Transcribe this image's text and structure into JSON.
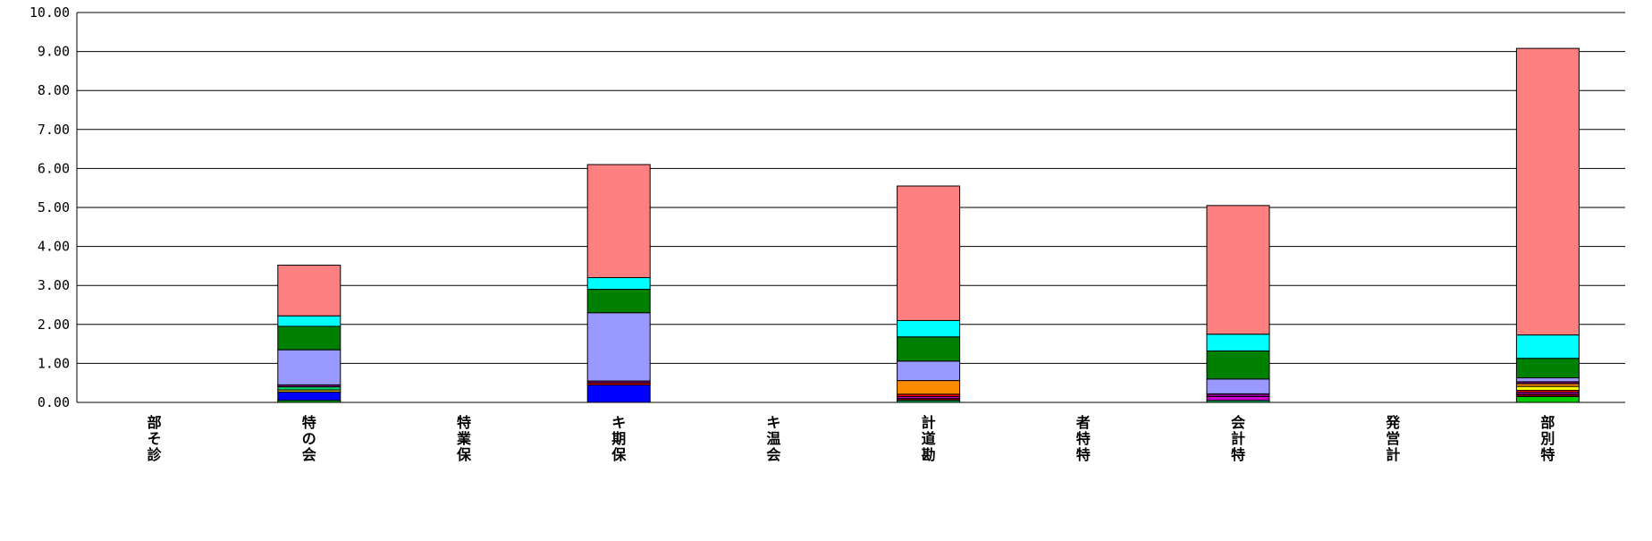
{
  "chart_data": {
    "type": "bar",
    "stacked": true,
    "title": "",
    "xlabel": "",
    "ylabel": "",
    "ylim": [
      0,
      10
    ],
    "yticks": [
      "0.00",
      "1.00",
      "2.00",
      "3.00",
      "4.00",
      "5.00",
      "6.00",
      "7.00",
      "8.00",
      "9.00",
      "10.00"
    ],
    "grid": true,
    "legend": "none",
    "categories": [
      "部そ診",
      "特の会",
      "特業保",
      "キ期保",
      "キ温会",
      "計道勘",
      "者特特",
      "会計特",
      "発営計",
      "部別特"
    ],
    "series": [
      {
        "color": "#00cc00",
        "values": [
          0,
          0.05,
          0,
          0,
          0,
          0,
          0,
          0,
          0,
          0.15
        ]
      },
      {
        "color": "#0000ff",
        "values": [
          0,
          0.22,
          0,
          0.45,
          0,
          0,
          0,
          0,
          0,
          0
        ]
      },
      {
        "color": "#ffd700",
        "values": [
          0,
          0.05,
          0,
          0,
          0,
          0,
          0,
          0,
          0,
          0
        ]
      },
      {
        "color": "#00cc66",
        "values": [
          0,
          0.08,
          0,
          0,
          0,
          0.05,
          0,
          0.05,
          0,
          0
        ]
      },
      {
        "color": "#800000",
        "values": [
          0,
          0,
          0,
          0,
          0,
          0.05,
          0,
          0,
          0,
          0.06
        ]
      },
      {
        "color": "#cc00cc",
        "values": [
          0,
          0,
          0,
          0,
          0,
          0.05,
          0,
          0.1,
          0,
          0.05
        ]
      },
      {
        "color": "#ff0000",
        "values": [
          0,
          0,
          0,
          0.05,
          0,
          0.06,
          0,
          0,
          0,
          0.05
        ]
      },
      {
        "color": "#ffff00",
        "values": [
          0,
          0,
          0,
          0,
          0,
          0,
          0,
          0,
          0,
          0.1
        ]
      },
      {
        "color": "#ff8c00",
        "values": [
          0,
          0,
          0,
          0,
          0,
          0.35,
          0,
          0,
          0,
          0.07
        ]
      },
      {
        "color": "#800080",
        "values": [
          0,
          0.05,
          0,
          0.05,
          0,
          0,
          0,
          0.07,
          0,
          0.05
        ]
      },
      {
        "color": "#9999ff",
        "values": [
          0,
          0.9,
          0,
          1.75,
          0,
          0.5,
          0,
          0.38,
          0,
          0.1
        ]
      },
      {
        "color": "#008000",
        "values": [
          0,
          0.6,
          0,
          0.6,
          0,
          0.62,
          0,
          0.72,
          0,
          0.5
        ]
      },
      {
        "color": "#00ffff",
        "values": [
          0,
          0.27,
          0,
          0.3,
          0,
          0.42,
          0,
          0.43,
          0,
          0.6
        ]
      },
      {
        "color": "#ff8080",
        "values": [
          0,
          1.3,
          0,
          2.9,
          0,
          3.45,
          0,
          3.3,
          0,
          7.35
        ]
      }
    ]
  }
}
